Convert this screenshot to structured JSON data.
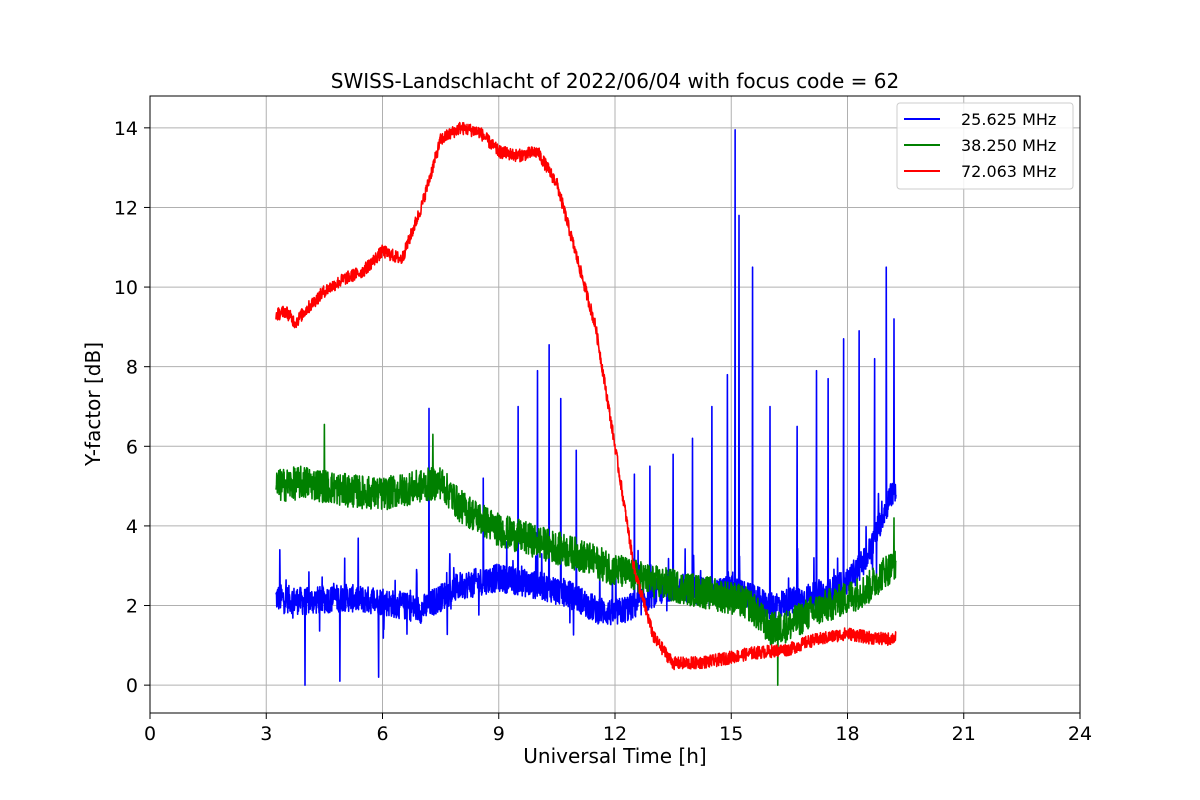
{
  "chart_data": {
    "type": "line",
    "title": "SWISS-Landschlacht of 2022/06/04 with focus code = 62",
    "xlabel": "Universal Time [h]",
    "ylabel": "Y-factor [dB]",
    "xlim": [
      0,
      24
    ],
    "ylim": [
      -0.7,
      14.8
    ],
    "x_ticks": [
      0,
      3,
      6,
      9,
      12,
      15,
      18,
      21,
      24
    ],
    "y_ticks": [
      0,
      2,
      4,
      6,
      8,
      10,
      12,
      14
    ],
    "grid": true,
    "legend_position": "top-right",
    "series": [
      {
        "name": "25.625 MHz",
        "color": "#0000ff",
        "noise": 0.35,
        "x": [
          3.25,
          4.0,
          5.0,
          6.0,
          6.5,
          7.0,
          7.5,
          8.0,
          8.5,
          9.0,
          9.5,
          10.0,
          10.5,
          11.0,
          11.5,
          12.0,
          12.5,
          13.0,
          13.5,
          14.0,
          14.5,
          15.0,
          15.5,
          16.0,
          16.5,
          17.0,
          17.5,
          18.0,
          18.5,
          19.0,
          19.25
        ],
        "y": [
          2.2,
          2.1,
          2.2,
          2.1,
          2.0,
          1.9,
          2.2,
          2.5,
          2.6,
          2.7,
          2.6,
          2.5,
          2.4,
          2.2,
          1.9,
          1.8,
          2.0,
          2.3,
          2.5,
          2.4,
          2.3,
          2.4,
          2.2,
          2.0,
          2.1,
          2.2,
          2.3,
          2.6,
          3.2,
          4.5,
          5.0
        ],
        "spikes": [
          {
            "x": 3.35,
            "y": 3.4
          },
          {
            "x": 4.0,
            "y": 0.0
          },
          {
            "x": 4.9,
            "y": 0.1
          },
          {
            "x": 5.9,
            "y": 0.2
          },
          {
            "x": 7.2,
            "y": 6.95
          },
          {
            "x": 8.6,
            "y": 5.2
          },
          {
            "x": 9.5,
            "y": 7.0
          },
          {
            "x": 10.0,
            "y": 7.9
          },
          {
            "x": 10.3,
            "y": 8.55
          },
          {
            "x": 10.6,
            "y": 7.2
          },
          {
            "x": 11.0,
            "y": 5.9
          },
          {
            "x": 12.5,
            "y": 5.3
          },
          {
            "x": 12.9,
            "y": 5.5
          },
          {
            "x": 13.5,
            "y": 5.8
          },
          {
            "x": 14.0,
            "y": 6.2
          },
          {
            "x": 14.5,
            "y": 7.0
          },
          {
            "x": 14.9,
            "y": 7.8
          },
          {
            "x": 15.1,
            "y": 13.95
          },
          {
            "x": 15.2,
            "y": 11.8
          },
          {
            "x": 15.55,
            "y": 10.5
          },
          {
            "x": 16.0,
            "y": 7.0
          },
          {
            "x": 16.7,
            "y": 6.5
          },
          {
            "x": 17.2,
            "y": 7.9
          },
          {
            "x": 17.5,
            "y": 7.7
          },
          {
            "x": 17.9,
            "y": 8.7
          },
          {
            "x": 18.3,
            "y": 8.9
          },
          {
            "x": 18.7,
            "y": 8.2
          },
          {
            "x": 19.0,
            "y": 10.5
          },
          {
            "x": 19.2,
            "y": 9.2
          }
        ]
      },
      {
        "name": "38.250 MHz",
        "color": "#008000",
        "noise": 0.42,
        "x": [
          3.25,
          4.0,
          5.0,
          6.0,
          7.0,
          7.5,
          8.0,
          9.0,
          10.0,
          11.0,
          12.0,
          13.0,
          14.0,
          15.0,
          15.5,
          16.0,
          16.5,
          17.0,
          17.5,
          18.0,
          18.5,
          19.0,
          19.25
        ],
        "y": [
          5.0,
          5.1,
          4.9,
          4.8,
          5.0,
          5.1,
          4.5,
          3.9,
          3.6,
          3.3,
          2.9,
          2.6,
          2.4,
          2.2,
          2.0,
          1.4,
          1.5,
          1.8,
          2.0,
          2.2,
          2.4,
          2.9,
          3.0
        ],
        "spikes": [
          {
            "x": 4.5,
            "y": 6.55
          },
          {
            "x": 7.3,
            "y": 6.3
          },
          {
            "x": 16.2,
            "y": 0.0
          },
          {
            "x": 19.2,
            "y": 4.2
          }
        ]
      },
      {
        "name": "72.063 MHz",
        "color": "#ff0000",
        "noise": 0.16,
        "x": [
          3.25,
          3.5,
          3.75,
          4.0,
          4.5,
          5.0,
          5.5,
          6.0,
          6.5,
          7.0,
          7.5,
          8.0,
          8.5,
          9.0,
          9.5,
          10.0,
          10.5,
          11.0,
          11.5,
          12.0,
          12.5,
          13.0,
          13.5,
          14.0,
          14.5,
          15.0,
          15.5,
          16.0,
          16.5,
          17.0,
          17.5,
          18.0,
          18.5,
          19.0,
          19.25
        ],
        "y": [
          9.3,
          9.4,
          9.1,
          9.4,
          9.9,
          10.2,
          10.4,
          10.9,
          10.7,
          12.0,
          13.7,
          14.0,
          13.9,
          13.4,
          13.3,
          13.4,
          12.6,
          10.8,
          9.0,
          6.0,
          2.9,
          1.2,
          0.55,
          0.55,
          0.6,
          0.7,
          0.8,
          0.85,
          0.9,
          1.1,
          1.2,
          1.3,
          1.2,
          1.15,
          1.2
        ],
        "spikes": []
      }
    ]
  }
}
